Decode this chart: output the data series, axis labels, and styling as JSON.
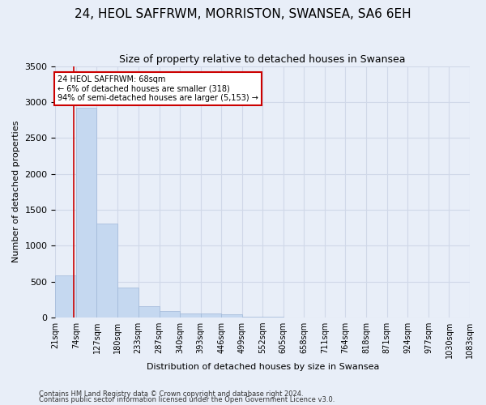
{
  "title": "24, HEOL SAFFRWM, MORRISTON, SWANSEA, SA6 6EH",
  "subtitle": "Size of property relative to detached houses in Swansea",
  "xlabel": "Distribution of detached houses by size in Swansea",
  "ylabel": "Number of detached properties",
  "footnote1": "Contains HM Land Registry data © Crown copyright and database right 2024.",
  "footnote2": "Contains public sector information licensed under the Open Government Licence v3.0.",
  "bar_edges": [
    21,
    74,
    127,
    180,
    233,
    287,
    340,
    393,
    446,
    499,
    552,
    605,
    658,
    711,
    764,
    818,
    871,
    924,
    977,
    1030,
    1083
  ],
  "bar_heights": [
    580,
    2920,
    1310,
    420,
    155,
    85,
    60,
    50,
    40,
    10,
    5,
    2,
    1,
    1,
    0,
    0,
    0,
    0,
    0,
    0
  ],
  "bar_color": "#c5d8f0",
  "bar_edgecolor": "#a0b8d8",
  "property_size": 68,
  "annotation_line1": "24 HEOL SAFFRWM: 68sqm",
  "annotation_line2": "← 6% of detached houses are smaller (318)",
  "annotation_line3": "94% of semi-detached houses are larger (5,153) →",
  "annotation_box_color": "#ffffff",
  "annotation_box_edgecolor": "#cc0000",
  "vline_color": "#cc0000",
  "ylim": [
    0,
    3500
  ],
  "grid_color": "#d0d8e8",
  "background_color": "#e8eef8",
  "title_fontsize": 11,
  "subtitle_fontsize": 9,
  "xlabel_fontsize": 8,
  "ylabel_fontsize": 8,
  "tick_fontsize": 7,
  "annotation_fontsize": 7,
  "footnote_fontsize": 6
}
